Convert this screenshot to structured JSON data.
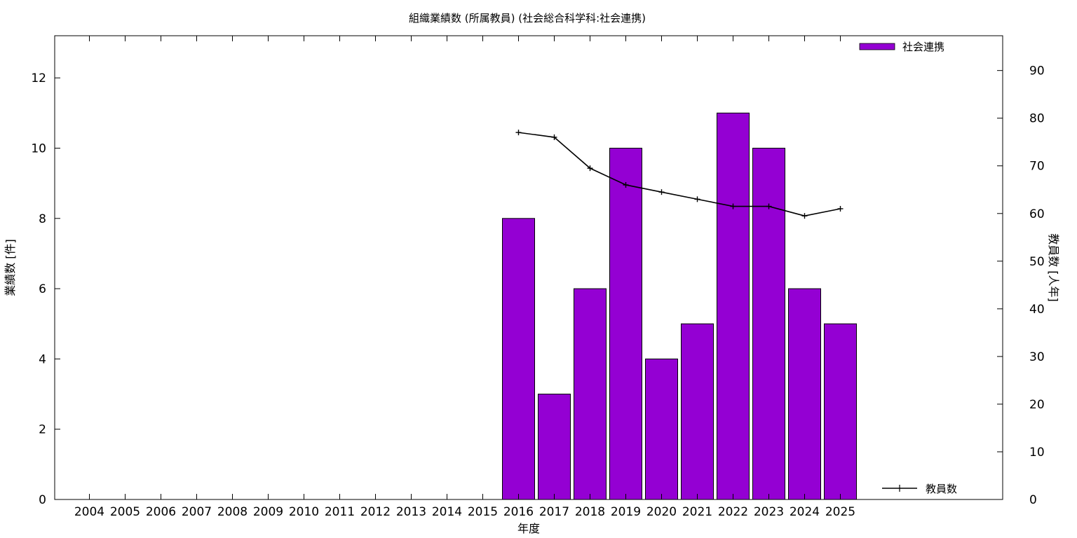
{
  "chart_data": {
    "type": "bar",
    "title": "組織業績数 (所属教員) (社会総合科学科:社会連携)",
    "xlabel": "年度",
    "ylabel": "業績数 [件]",
    "y2label": "教員数 [人年]",
    "categories": [
      "2004",
      "2005",
      "2006",
      "2007",
      "2008",
      "2009",
      "2010",
      "2011",
      "2012",
      "2013",
      "2014",
      "2015",
      "2016",
      "2017",
      "2018",
      "2019",
      "2020",
      "2021",
      "2022",
      "2023",
      "2024",
      "2025"
    ],
    "ylim": [
      0,
      13.2
    ],
    "yticks": [
      0,
      2,
      4,
      6,
      8,
      10,
      12
    ],
    "y2lim": [
      0,
      97.3
    ],
    "y2ticks": [
      0,
      10,
      20,
      30,
      40,
      50,
      60,
      70,
      80,
      90
    ],
    "grid": false,
    "series": [
      {
        "name": "社会連携",
        "type": "bar",
        "axis": "left",
        "color": "#9400d3",
        "values": [
          null,
          null,
          null,
          null,
          null,
          null,
          null,
          null,
          null,
          null,
          null,
          null,
          8,
          3,
          6,
          10,
          4,
          5,
          11,
          10,
          6,
          5
        ]
      },
      {
        "name": "教員数",
        "type": "line",
        "axis": "right",
        "color": "#000000",
        "values": [
          null,
          null,
          null,
          null,
          null,
          null,
          null,
          null,
          null,
          null,
          null,
          null,
          77,
          76,
          69.5,
          66,
          64.5,
          63,
          61.5,
          61.5,
          59.5,
          61
        ]
      }
    ],
    "legend": [
      {
        "label": "社会連携",
        "placement": "top-right"
      },
      {
        "label": "教員数",
        "placement": "bottom-right"
      }
    ]
  }
}
